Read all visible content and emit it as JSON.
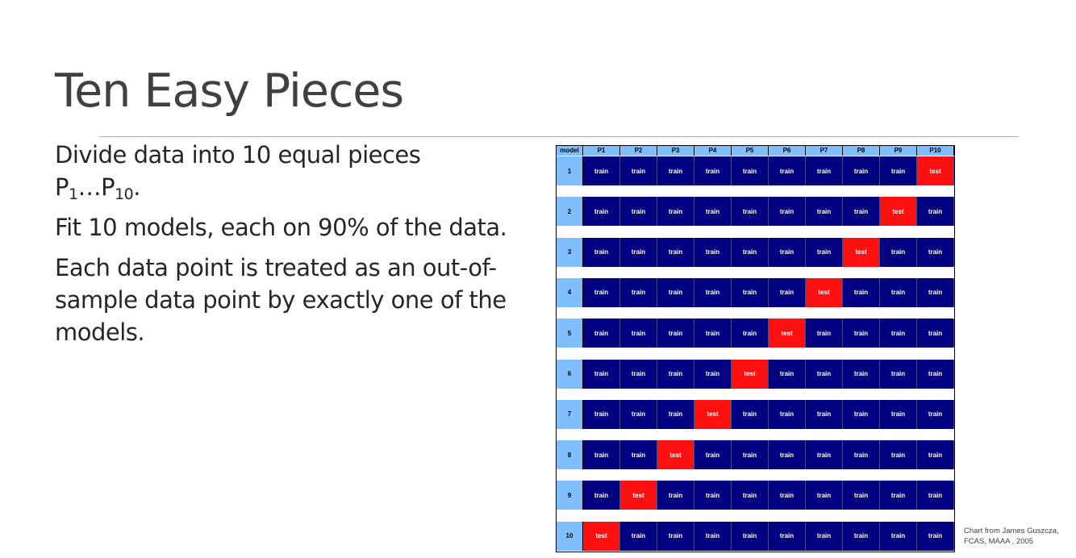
{
  "slide": {
    "title": "Ten Easy Pieces",
    "para1_main": "Divide data into 10 equal pieces",
    "para1_p1": "P",
    "para1_sub1": "1",
    "para1_ellipsis": "…P",
    "para1_sub2": "10",
    "para1_end": ".",
    "para2": "Fit 10 models, each on 90% of the data.",
    "para3": "Each data point is treated as an out-of-sample data point by exactly one of the models.",
    "credit": "Chart from James Guszcza, FCAS, MAAA , 2005"
  },
  "chart_data": {
    "type": "table",
    "header_label": "model",
    "columns": [
      "P1",
      "P2",
      "P3",
      "P4",
      "P5",
      "P6",
      "P7",
      "P8",
      "P9",
      "P10"
    ],
    "rows": [
      {
        "model": "1",
        "cells": [
          "train",
          "train",
          "train",
          "train",
          "train",
          "train",
          "train",
          "train",
          "train",
          "test"
        ]
      },
      {
        "model": "2",
        "cells": [
          "train",
          "train",
          "train",
          "train",
          "train",
          "train",
          "train",
          "train",
          "test",
          "train"
        ]
      },
      {
        "model": "3",
        "cells": [
          "train",
          "train",
          "train",
          "train",
          "train",
          "train",
          "train",
          "test",
          "train",
          "train"
        ]
      },
      {
        "model": "4",
        "cells": [
          "train",
          "train",
          "train",
          "train",
          "train",
          "train",
          "test",
          "train",
          "train",
          "train"
        ]
      },
      {
        "model": "5",
        "cells": [
          "train",
          "train",
          "train",
          "train",
          "train",
          "test",
          "train",
          "train",
          "train",
          "train"
        ]
      },
      {
        "model": "6",
        "cells": [
          "train",
          "train",
          "train",
          "train",
          "test",
          "train",
          "train",
          "train",
          "train",
          "train"
        ]
      },
      {
        "model": "7",
        "cells": [
          "train",
          "train",
          "train",
          "test",
          "train",
          "train",
          "train",
          "train",
          "train",
          "train"
        ]
      },
      {
        "model": "8",
        "cells": [
          "train",
          "train",
          "test",
          "train",
          "train",
          "train",
          "train",
          "train",
          "train",
          "train"
        ]
      },
      {
        "model": "9",
        "cells": [
          "train",
          "test",
          "train",
          "train",
          "train",
          "train",
          "train",
          "train",
          "train",
          "train"
        ]
      },
      {
        "model": "10",
        "cells": [
          "test",
          "train",
          "train",
          "train",
          "train",
          "train",
          "train",
          "train",
          "train",
          "train"
        ]
      }
    ],
    "colors": {
      "train": "#000080",
      "test": "#ff1010",
      "header": "#7fbfff"
    }
  }
}
